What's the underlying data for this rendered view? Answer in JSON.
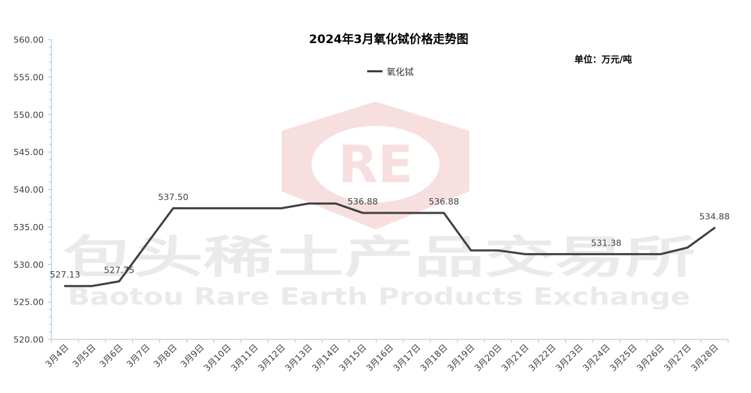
{
  "chart_data": {
    "type": "line",
    "title": "2024年3月氧化铽价格走势图",
    "unit_label": "单位：万元/吨",
    "categories": [
      "3月4日",
      "3月5日",
      "3月6日",
      "3月7日",
      "3月8日",
      "3月9日",
      "3月10日",
      "3月11日",
      "3月12日",
      "3月13日",
      "3月14日",
      "3月15日",
      "3月16日",
      "3月17日",
      "3月18日",
      "3月19日",
      "3月20日",
      "3月21日",
      "3月22日",
      "3月23日",
      "3月24日",
      "3月25日",
      "3月26日",
      "3月27日",
      "3月28日"
    ],
    "series": [
      {
        "name": "氧化铽",
        "color": "#3f3f3f",
        "values": [
          527.13,
          527.13,
          527.75,
          532.63,
          537.5,
          537.5,
          537.5,
          537.5,
          537.5,
          538.13,
          538.13,
          536.88,
          536.88,
          536.88,
          536.88,
          531.88,
          531.88,
          531.38,
          531.38,
          531.38,
          531.38,
          531.38,
          531.38,
          532.25,
          534.88
        ]
      }
    ],
    "data_labels": [
      {
        "index": 0,
        "text": "527.13"
      },
      {
        "index": 2,
        "text": "527.75"
      },
      {
        "index": 4,
        "text": "537.50"
      },
      {
        "index": 11,
        "text": "536.88"
      },
      {
        "index": 14,
        "text": "536.88"
      },
      {
        "index": 20,
        "text": "531.38"
      },
      {
        "index": 24,
        "text": "534.88"
      }
    ],
    "yticks": [
      "520.00",
      "525.00",
      "530.00",
      "535.00",
      "540.00",
      "545.00",
      "550.00",
      "555.00",
      "560.00"
    ],
    "ylim": [
      520,
      560
    ],
    "grid": false,
    "legend_position": "top-center",
    "axis_color": "#8cc3e8"
  },
  "watermark": {
    "logo_text": "RE",
    "name_cn": "包头稀土产品交易所",
    "name_en": "Baotou Rare Earth Products Exchange"
  }
}
